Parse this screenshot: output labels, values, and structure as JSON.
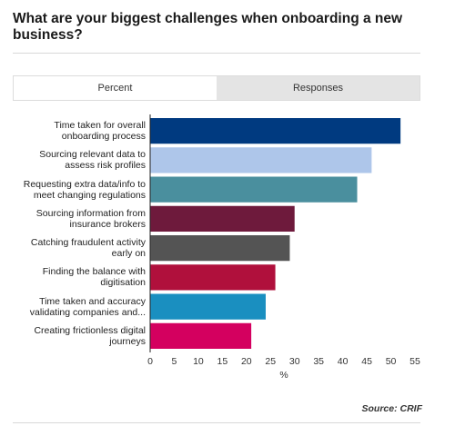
{
  "title": "What are your biggest challenges when onboarding a new business?",
  "tabs": [
    "Percent",
    "Responses"
  ],
  "source": "Source: CRIF",
  "chart_data": {
    "type": "bar",
    "orientation": "horizontal",
    "categories": [
      "Time taken for overall onboarding process",
      "Sourcing relevant data to assess risk profiles",
      "Requesting extra data/info to meet changing regulations",
      "Sourcing information from insurance brokers",
      "Catching fraudulent activity early on",
      "Finding the balance with digitisation",
      "Time taken and accuracy validating companies and...",
      "Creating frictionless digital journeys"
    ],
    "values": [
      52,
      46,
      43,
      30,
      29,
      26,
      24,
      21
    ],
    "colors": [
      "#003a80",
      "#aec6ea",
      "#4a8f9e",
      "#6e1a3c",
      "#545454",
      "#b0103c",
      "#1a8fc0",
      "#d4005f"
    ],
    "xlabel": "%",
    "xlim": [
      0,
      55
    ],
    "xticks": [
      0,
      5,
      10,
      15,
      20,
      25,
      30,
      35,
      40,
      45,
      50,
      55
    ]
  }
}
